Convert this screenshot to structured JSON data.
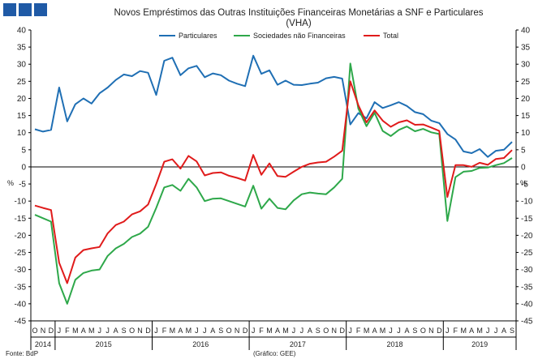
{
  "header": {
    "logo_icon": "bdp-logo-blocks"
  },
  "chart_data": {
    "type": "line",
    "title": "Novos Empréstimos das Outras Instituições Financeiras Monetárias a SNF e Particulares",
    "subtitle": "(VHA)",
    "ylabel_left": "%",
    "ylabel_right": "%",
    "ylim": [
      -45,
      40
    ],
    "yticks": [
      40,
      35,
      30,
      25,
      20,
      15,
      10,
      5,
      0,
      -5,
      -10,
      -15,
      -20,
      -25,
      -30,
      -35,
      -40,
      -45
    ],
    "grid": false,
    "legend_position": "top",
    "x": [
      "O",
      "N",
      "D",
      "J",
      "F",
      "M",
      "A",
      "M",
      "J",
      "J",
      "A",
      "S",
      "O",
      "N",
      "D",
      "J",
      "F",
      "M",
      "A",
      "M",
      "J",
      "J",
      "A",
      "S",
      "O",
      "N",
      "D",
      "J",
      "F",
      "M",
      "A",
      "M",
      "J",
      "J",
      "A",
      "S",
      "O",
      "N",
      "D",
      "J",
      "F",
      "M",
      "A",
      "M",
      "J",
      "J",
      "A",
      "S",
      "O",
      "N",
      "D",
      "J",
      "F",
      "M",
      "A",
      "M",
      "J",
      "J",
      "A",
      "S"
    ],
    "years": [
      {
        "label": "2014",
        "start": 0,
        "end": 2
      },
      {
        "label": "2015",
        "start": 3,
        "end": 14
      },
      {
        "label": "2016",
        "start": 15,
        "end": 26
      },
      {
        "label": "2017",
        "start": 27,
        "end": 38
      },
      {
        "label": "2018",
        "start": 39,
        "end": 50
      },
      {
        "label": "2019",
        "start": 51,
        "end": 59
      }
    ],
    "series": [
      {
        "name": "Particulares",
        "color": "#1f6fb4",
        "values": [
          11,
          10.3,
          10.8,
          23.2,
          13.3,
          18.3,
          20,
          18.5,
          21.5,
          23.2,
          25.4,
          27,
          26.5,
          28,
          27.5,
          21,
          31,
          31.9,
          26.8,
          28.8,
          29.5,
          26.2,
          27.3,
          26.8,
          25.2,
          24.3,
          23.6,
          32.5,
          27.2,
          28.2,
          24,
          25.2,
          24,
          23.9,
          24.3,
          24.6,
          25.9,
          26.3,
          25.8,
          12.4,
          15.7,
          14.2,
          18.9,
          17.2,
          18,
          18.9,
          17.8,
          16,
          15.4,
          13.5,
          12.8,
          9.6,
          8,
          4.5,
          4,
          5.2,
          2.9,
          4.7,
          5,
          7.3
        ]
      },
      {
        "name": "Sociedades não Financeiras",
        "color": "#2ea84a",
        "values": [
          -14,
          -15,
          -16,
          -34,
          -40,
          -33,
          -31,
          -30.3,
          -30,
          -26,
          -23.8,
          -22.5,
          -20.5,
          -19.5,
          -17.5,
          -12,
          -6,
          -5.3,
          -7,
          -3.5,
          -6,
          -10,
          -9.3,
          -9.2,
          -10,
          -10.8,
          -11.6,
          -5.5,
          -12.2,
          -9.3,
          -12,
          -12.4,
          -9.8,
          -8,
          -7.5,
          -7.8,
          -8,
          -6,
          -3.5,
          30.2,
          17,
          11.9,
          15.8,
          10.5,
          9,
          10.8,
          11.8,
          10.4,
          11.1,
          10.1,
          9.6,
          -15.8,
          -3,
          -1.4,
          -1.2,
          -0.3,
          -0.2,
          0.5,
          1.1,
          2.6
        ]
      },
      {
        "name": "Total",
        "color": "#e01b1b",
        "values": [
          -11.3,
          -12,
          -12.6,
          -28,
          -34,
          -26.5,
          -24.3,
          -23.8,
          -23.4,
          -19.4,
          -17,
          -16,
          -13.9,
          -13,
          -11,
          -5,
          1.5,
          2.2,
          -0.5,
          3.2,
          1.6,
          -2.5,
          -1.8,
          -1.6,
          -2.6,
          -3.2,
          -4,
          3.5,
          -2.3,
          1,
          -2.7,
          -2.9,
          -1.4,
          0,
          0.9,
          1.3,
          1.5,
          3,
          4.7,
          25,
          18,
          13,
          16.5,
          13.5,
          11.7,
          13,
          13.6,
          12.3,
          12.4,
          11.5,
          10.5,
          -8.8,
          0.5,
          0.5,
          0,
          1.2,
          0.6,
          2.3,
          2.6,
          4.9
        ]
      }
    ]
  },
  "footer": {
    "source": "Fonte: BdP",
    "credit": "(Gráfico: GEE)"
  }
}
